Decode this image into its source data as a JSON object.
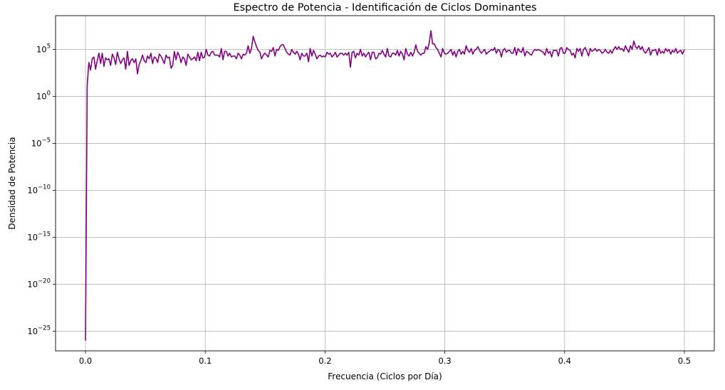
{
  "chart_data": {
    "type": "line",
    "title": "Espectro de Potencia - Identificación de Ciclos Dominantes",
    "xlabel": "Frecuencia (Ciclos por Día)",
    "ylabel": "Densidad de Potencia",
    "xlim": [
      -0.025,
      0.525
    ],
    "ylim_log10": [
      -27.1,
      8.6
    ],
    "y_scale": "log",
    "grid": true,
    "line_color": "#800080",
    "x_ticks": [
      {
        "value": 0.0,
        "label": "0.0"
      },
      {
        "value": 0.1,
        "label": "0.1"
      },
      {
        "value": 0.2,
        "label": "0.2"
      },
      {
        "value": 0.3,
        "label": "0.3"
      },
      {
        "value": 0.4,
        "label": "0.4"
      },
      {
        "value": 0.5,
        "label": "0.5"
      }
    ],
    "y_ticks": [
      {
        "exp": 5,
        "base": "10",
        "sup": "5",
        "sign": ""
      },
      {
        "exp": 0,
        "base": "10",
        "sup": "0",
        "sign": ""
      },
      {
        "exp": -5,
        "base": "10",
        "sup": "−5",
        "sign": "−"
      },
      {
        "exp": -10,
        "base": "10",
        "sup": "−10",
        "sign": "−"
      },
      {
        "exp": -15,
        "base": "10",
        "sup": "−15",
        "sign": "−"
      },
      {
        "exp": -20,
        "base": "10",
        "sup": "−20",
        "sign": "−"
      },
      {
        "exp": -25,
        "base": "10",
        "sup": "−25",
        "sign": "−"
      }
    ],
    "series": [
      {
        "x": [
          0.0,
          0.0014,
          0.0028,
          0.0042,
          0.0056,
          0.007,
          0.0084,
          0.0098,
          0.0112,
          0.0126,
          0.014,
          0.0154,
          0.0168,
          0.0182,
          0.0196,
          0.021,
          0.0224,
          0.0238,
          0.0252,
          0.0266,
          0.028,
          0.0294,
          0.0308,
          0.0322,
          0.0336,
          0.035,
          0.0364,
          0.0378,
          0.0392,
          0.0406,
          0.042,
          0.0434,
          0.0448,
          0.0462,
          0.0476,
          0.049,
          0.0504,
          0.0518,
          0.0532,
          0.0546,
          0.056,
          0.0574,
          0.0588,
          0.0602,
          0.0616,
          0.063,
          0.0644,
          0.0658,
          0.0672,
          0.0686,
          0.07,
          0.0714,
          0.0728,
          0.0742,
          0.0756,
          0.077,
          0.0784,
          0.0798,
          0.0812,
          0.0826,
          0.084,
          0.0854,
          0.0868,
          0.0882,
          0.0896,
          0.091,
          0.0924,
          0.0938,
          0.0952,
          0.0966,
          0.098,
          0.0994,
          0.1008,
          0.1022,
          0.1036,
          0.105,
          0.1064,
          0.1078,
          0.1092,
          0.1106,
          0.112,
          0.1134,
          0.1148,
          0.1162,
          0.1176,
          0.119,
          0.1204,
          0.1218,
          0.1232,
          0.1246,
          0.126,
          0.1274,
          0.1288,
          0.1302,
          0.1316,
          0.133,
          0.1344,
          0.1358,
          0.1372,
          0.1386,
          0.14,
          0.1414,
          0.1428,
          0.1442,
          0.1456,
          0.147,
          0.1484,
          0.1498,
          0.1512,
          0.1526,
          0.154,
          0.1554,
          0.1568,
          0.1582,
          0.1596,
          0.161,
          0.1624,
          0.1638,
          0.1652,
          0.1666,
          0.168,
          0.1694,
          0.1708,
          0.1722,
          0.1736,
          0.175,
          0.1764,
          0.1778,
          0.1792,
          0.1806,
          0.182,
          0.1834,
          0.1848,
          0.1862,
          0.1876,
          0.189,
          0.1904,
          0.1918,
          0.1932,
          0.1946,
          0.196,
          0.1974,
          0.1988,
          0.2002,
          0.2016,
          0.203,
          0.2044,
          0.2058,
          0.2072,
          0.2086,
          0.21,
          0.2114,
          0.2128,
          0.2142,
          0.2156,
          0.217,
          0.2184,
          0.2198,
          0.2212,
          0.2226,
          0.224,
          0.2254,
          0.2268,
          0.2282,
          0.2296,
          0.231,
          0.2324,
          0.2338,
          0.2352,
          0.2366,
          0.238,
          0.2394,
          0.2408,
          0.2422,
          0.2436,
          0.245,
          0.2464,
          0.2478,
          0.2492,
          0.2506,
          0.252,
          0.2534,
          0.2548,
          0.2562,
          0.2576,
          0.259,
          0.2604,
          0.2618,
          0.2632,
          0.2646,
          0.266,
          0.2674,
          0.2688,
          0.2702,
          0.2716,
          0.273,
          0.2744,
          0.2758,
          0.2772,
          0.2786,
          0.28,
          0.2814,
          0.2828,
          0.2842,
          0.2856,
          0.287,
          0.2884,
          0.2898,
          0.2912,
          0.2926,
          0.294,
          0.2954,
          0.2968,
          0.2982,
          0.2996,
          0.301,
          0.3024,
          0.3038,
          0.3052,
          0.3066,
          0.308,
          0.3094,
          0.3108,
          0.3122,
          0.3136,
          0.315,
          0.3164,
          0.3178,
          0.3192,
          0.3206,
          0.322,
          0.3234,
          0.3248,
          0.3262,
          0.3276,
          0.329,
          0.3304,
          0.3318,
          0.3332,
          0.3346,
          0.336,
          0.3374,
          0.3388,
          0.3402,
          0.3416,
          0.343,
          0.3444,
          0.3458,
          0.3472,
          0.3486,
          0.35,
          0.3514,
          0.3528,
          0.3542,
          0.3556,
          0.357,
          0.3584,
          0.3598,
          0.3612,
          0.3626,
          0.364,
          0.3654,
          0.3668,
          0.3682,
          0.3696,
          0.371,
          0.3724,
          0.3738,
          0.3752,
          0.3766,
          0.378,
          0.3794,
          0.3808,
          0.3822,
          0.3836,
          0.385,
          0.3864,
          0.3878,
          0.3892,
          0.3906,
          0.392,
          0.3934,
          0.3948,
          0.3962,
          0.3976,
          0.399,
          0.4004,
          0.4018,
          0.4032,
          0.4046,
          0.406,
          0.4074,
          0.4088,
          0.4102,
          0.4116,
          0.413,
          0.4144,
          0.4158,
          0.4172,
          0.4186,
          0.42,
          0.4214,
          0.4228,
          0.4242,
          0.4256,
          0.427,
          0.4284,
          0.4298,
          0.4312,
          0.4326,
          0.434,
          0.4354,
          0.4368,
          0.4382,
          0.4396,
          0.441,
          0.4424,
          0.4438,
          0.4452,
          0.4466,
          0.448,
          0.4494,
          0.4508,
          0.4522,
          0.4536,
          0.455,
          0.4564,
          0.4578,
          0.4592,
          0.4606,
          0.462,
          0.4634,
          0.4648,
          0.4662,
          0.4676,
          0.469,
          0.4704,
          0.4718,
          0.4732,
          0.4746,
          0.476,
          0.4774,
          0.4788,
          0.4802,
          0.4816,
          0.483,
          0.4844,
          0.4858,
          0.4872,
          0.4886,
          0.49,
          0.4914,
          0.4928,
          0.4942,
          0.4956,
          0.497,
          0.4984,
          0.5
        ],
        "log10_y": [
          -26.0,
          1.1,
          3.6,
          2.8,
          4.0,
          4.2,
          2.9,
          3.8,
          4.6,
          3.5,
          4.6,
          3.2,
          4.1,
          3.9,
          4.0,
          3.3,
          4.5,
          4.1,
          3.4,
          4.7,
          4.0,
          3.5,
          3.9,
          4.1,
          2.9,
          4.8,
          3.3,
          3.8,
          4.0,
          3.6,
          4.0,
          2.4,
          3.4,
          3.8,
          4.4,
          3.8,
          3.6,
          4.3,
          4.0,
          4.6,
          3.5,
          4.2,
          4.1,
          3.6,
          4.5,
          4.3,
          3.9,
          3.5,
          4.4,
          4.1,
          4.2,
          3.0,
          3.3,
          4.8,
          3.9,
          4.7,
          4.3,
          3.6,
          4.2,
          4.0,
          3.3,
          4.5,
          4.2,
          3.9,
          4.0,
          4.2,
          3.8,
          4.7,
          3.8,
          4.7,
          4.1,
          4.2,
          5.0,
          4.4,
          4.3,
          4.7,
          4.8,
          4.4,
          4.4,
          4.4,
          4.2,
          5.1,
          3.9,
          4.8,
          4.8,
          4.3,
          4.6,
          4.2,
          4.3,
          4.3,
          4.0,
          4.6,
          4.4,
          4.0,
          4.5,
          4.4,
          4.6,
          5.4,
          4.6,
          5.1,
          6.4,
          5.8,
          5.3,
          4.9,
          4.7,
          4.0,
          4.4,
          4.6,
          4.4,
          4.2,
          4.9,
          4.8,
          5.2,
          4.3,
          5.0,
          4.9,
          5.3,
          5.5,
          5.5,
          5.1,
          4.7,
          4.5,
          4.4,
          5.0,
          4.7,
          4.5,
          4.8,
          4.5,
          3.9,
          4.6,
          4.3,
          4.3,
          4.6,
          3.7,
          5.1,
          4.3,
          4.9,
          4.5,
          4.0,
          4.3,
          4.4,
          4.2,
          4.3,
          4.2,
          4.7,
          4.5,
          4.6,
          4.2,
          4.4,
          4.7,
          4.2,
          4.4,
          4.6,
          4.6,
          4.4,
          4.6,
          4.4,
          4.7,
          3.1,
          4.7,
          4.8,
          4.1,
          4.6,
          4.4,
          5.0,
          4.3,
          4.6,
          4.2,
          4.5,
          4.7,
          3.9,
          4.7,
          4.7,
          4.0,
          4.1,
          4.6,
          4.5,
          4.9,
          4.5,
          4.2,
          5.1,
          4.3,
          4.2,
          4.6,
          4.6,
          4.4,
          4.9,
          4.3,
          4.8,
          4.5,
          3.9,
          5.1,
          4.5,
          4.3,
          4.7,
          4.3,
          4.7,
          5.5,
          4.8,
          4.6,
          4.4,
          4.6,
          4.6,
          5.3,
          5.0,
          5.7,
          7.0,
          5.6,
          5.6,
          5.2,
          5.0,
          4.6,
          4.2,
          5.1,
          4.6,
          4.5,
          4.6,
          4.8,
          5.0,
          4.4,
          4.8,
          4.2,
          4.8,
          5.0,
          4.5,
          4.8,
          4.5,
          5.4,
          4.9,
          4.7,
          5.1,
          4.5,
          4.9,
          5.0,
          5.3,
          4.9,
          4.6,
          4.8,
          5.0,
          4.5,
          4.7,
          4.8,
          5.0,
          4.9,
          5.2,
          4.6,
          5.0,
          4.9,
          4.2,
          4.9,
          5.1,
          4.7,
          4.9,
          4.9,
          4.6,
          4.6,
          5.2,
          4.4,
          5.1,
          4.8,
          4.7,
          5.2,
          4.3,
          4.8,
          4.7,
          4.5,
          4.4,
          4.8,
          5.0,
          4.9,
          5.0,
          4.9,
          4.8,
          4.7,
          4.4,
          5.1,
          4.6,
          4.8,
          4.2,
          4.9,
          4.9,
          4.9,
          4.3,
          5.1,
          5.2,
          4.6,
          4.6,
          5.2,
          5.0,
          4.9,
          4.4,
          4.6,
          4.1,
          5.1,
          4.8,
          5.1,
          4.3,
          5.0,
          5.2,
          4.8,
          4.3,
          5.1,
          4.8,
          4.9,
          5.1,
          4.8,
          5.0,
          4.9,
          4.6,
          4.7,
          5.0,
          4.7,
          4.6,
          4.9,
          4.6,
          5.0,
          5.3,
          5.0,
          5.3,
          5.0,
          5.1,
          4.8,
          5.4,
          5.0,
          4.7,
          5.4,
          5.0,
          5.9,
          5.3,
          5.1,
          5.4,
          5.0,
          5.3,
          4.8,
          4.6,
          4.9,
          5.2,
          4.4,
          4.9,
          4.9,
          5.0,
          4.4,
          5.1,
          4.6,
          4.8,
          4.6,
          5.1,
          4.8,
          5.0,
          4.5,
          4.9,
          4.7,
          5.1,
          4.6,
          4.8,
          4.9,
          4.5,
          5.0,
          4.8,
          4.4,
          4.9,
          4.7,
          4.9,
          4.3,
          5.0,
          4.4,
          4.8,
          4.9,
          4.7,
          4.8,
          4.9,
          4.3,
          3.9,
          5.0,
          5.4,
          4.4
        ]
      }
    ]
  }
}
